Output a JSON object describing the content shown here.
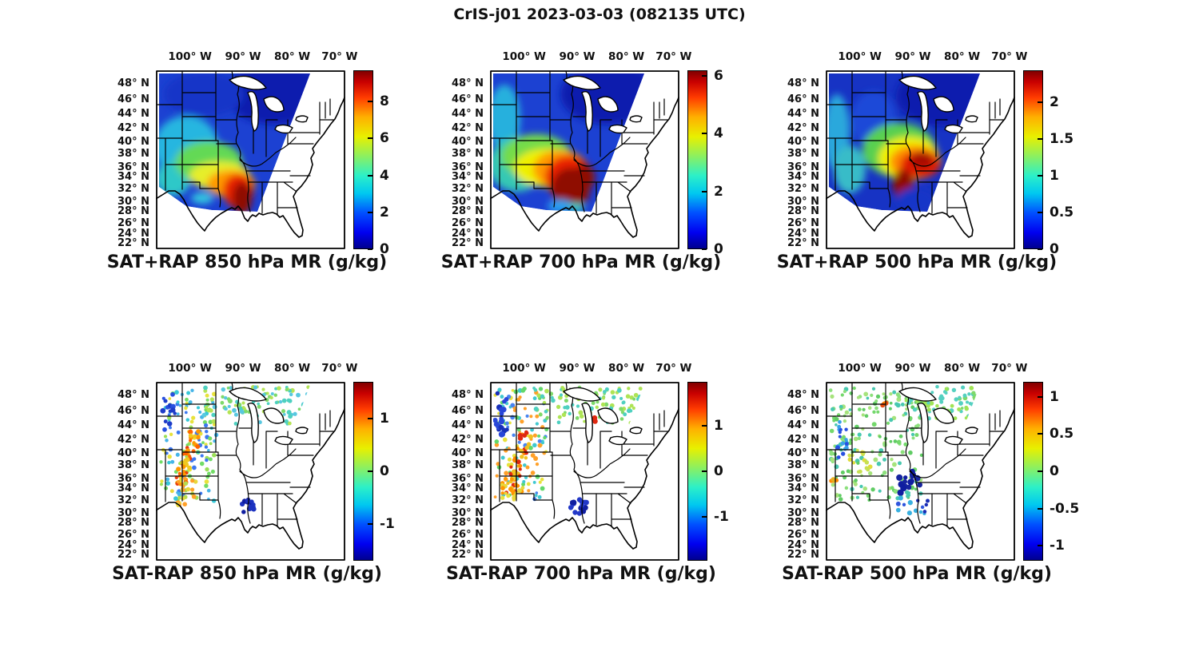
{
  "title": "CrIS-j01 2023-03-03 (082135 UTC)",
  "axis": {
    "lon_labels": [
      "100° W",
      "90° W",
      "80° W",
      "70° W"
    ],
    "lat_labels": [
      "48° N",
      "46° N",
      "44° N",
      "42° N",
      "40° N",
      "38° N",
      "36° N",
      "34° N",
      "32° N",
      "30° N",
      "28° N",
      "26° N",
      "24° N",
      "22° N"
    ]
  },
  "colormap": {
    "name": "jet",
    "low": "#00008f",
    "mid": "#e8f000",
    "high": "#800000"
  },
  "panels": [
    {
      "key": "sum850",
      "caption": "SAT+RAP 850 hPa MR (g/kg)",
      "colorbar": {
        "tick_labels": [
          "0",
          "2",
          "4",
          "6",
          "8"
        ],
        "tick_values": [
          0,
          2,
          4,
          6,
          8
        ],
        "min": 0,
        "max": 9.7
      }
    },
    {
      "key": "sum700",
      "caption": "SAT+RAP 700 hPa MR (g/kg)",
      "colorbar": {
        "tick_labels": [
          "0",
          "2",
          "4",
          "6"
        ],
        "tick_values": [
          0,
          2,
          4,
          6
        ],
        "min": 0,
        "max": 6.2
      }
    },
    {
      "key": "sum500",
      "caption": "SAT+RAP 500 hPa MR (g/kg)",
      "colorbar": {
        "tick_labels": [
          "0",
          "0.5",
          "1",
          "1.5",
          "2"
        ],
        "tick_values": [
          0,
          0.5,
          1,
          1.5,
          2
        ],
        "min": 0,
        "max": 2.43
      }
    },
    {
      "key": "diff850",
      "caption": "SAT-RAP 850 hPa MR (g/kg)",
      "colorbar": {
        "tick_labels": [
          "-1",
          "0",
          "1"
        ],
        "tick_values": [
          -1,
          0,
          1
        ],
        "min": -1.7,
        "max": 1.7
      }
    },
    {
      "key": "diff700",
      "caption": "SAT-RAP 700 hPa MR (g/kg)",
      "colorbar": {
        "tick_labels": [
          "-1",
          "0",
          "1"
        ],
        "tick_values": [
          -1,
          0,
          1
        ],
        "min": -1.95,
        "max": 1.95
      }
    },
    {
      "key": "diff500",
      "caption": "SAT-RAP 500 hPa MR (g/kg)",
      "colorbar": {
        "tick_labels": [
          "-1",
          "-0.5",
          "0",
          "0.5",
          "1"
        ],
        "tick_values": [
          -1,
          -0.5,
          0,
          0.5,
          1
        ],
        "min": -1.2,
        "max": 1.2
      }
    }
  ],
  "chart_data": [
    {
      "type": "heatmap",
      "title": "SAT+RAP 850 hPa MR (g/kg)",
      "units": "g/kg",
      "x_ticks": [
        "100° W",
        "90° W",
        "80° W",
        "70° W"
      ],
      "y_ticks": [
        "48° N",
        "46° N",
        "44° N",
        "42° N",
        "40° N",
        "38° N",
        "36° N",
        "34° N",
        "32° N",
        "30° N",
        "28° N",
        "26° N",
        "24° N",
        "22° N"
      ],
      "colorbar_ticks": [
        0,
        2,
        4,
        6,
        8
      ],
      "value_range": [
        0,
        9.7
      ],
      "pattern": "Satellite swath covers western 2/3 of domain; 1-3 g/kg (blue) over northern plains and Great Lakes, 4-6 g/kg (cyan-green-yellow) over central plains, 8-9+ g/kg (red/dark-red) plume over lower Mississippi valley (AR/LA/MS); white (no data) east of diagonal swath edge and over Gulf/Texas south."
    },
    {
      "type": "heatmap",
      "title": "SAT+RAP 700 hPa MR (g/kg)",
      "units": "g/kg",
      "colorbar_ticks": [
        0,
        2,
        4,
        6
      ],
      "value_range": [
        0,
        6.2
      ],
      "pattern": "Similar swath; broad 5-6+ g/kg (red/dark-red) maximum over MO/AR/MS/western TN, yellow-green fringe across KS/OK, blue 0.5-2 over northern plains and upper Great Lakes."
    },
    {
      "type": "heatmap",
      "title": "SAT+RAP 500 hPa MR (g/kg)",
      "units": "g/kg",
      "colorbar_ticks": [
        0,
        0.5,
        1,
        1.5,
        2
      ],
      "value_range": [
        0,
        2.43
      ],
      "pattern": "Mostly 0.3-1 (blue/cyan); red-orange arc ~2-2.4 over MO/IL/KY/TN with dark-red core near AR, low values south of it."
    },
    {
      "type": "scatter",
      "title": "SAT-RAP 850 hPa MR (g/kg)",
      "units": "g/kg",
      "colorbar_ticks": [
        -1,
        0,
        1
      ],
      "value_range": [
        -1.7,
        1.7
      ],
      "pattern": "Difference dots only where retrievals exist: green/cyan near 0 across north and Great Lakes, +1 to +1.5 (orange/red) streak along CO/NE/KS front range, scattered -1 (blue) dots west, dark-blue cluster ~-1.5 near AR/LA."
    },
    {
      "type": "scatter",
      "title": "SAT-RAP 700 hPa MR (g/kg)",
      "units": "g/kg",
      "colorbar_ticks": [
        -1,
        0,
        1
      ],
      "value_range": [
        -1.95,
        1.95
      ],
      "pattern": "Green/cyan near-zero field north; strong +1.5 (red/orange) diagonal streaks over CO/NM/KS; dark-blue negative clusters at western edge and near AR/LA; isolated red dot over MI."
    },
    {
      "type": "scatter",
      "title": "SAT-RAP 500 hPa MR (g/kg)",
      "units": "g/kg",
      "colorbar_ticks": [
        -1,
        -0.5,
        0,
        0.5,
        1
      ],
      "value_range": [
        -1.2,
        1.2
      ],
      "pattern": "Mostly near-zero green field over plains and upper midwest; dark-blue cluster ~-1 over MO/AR/OK; few orange +0.5 dots over ND and NM."
    }
  ]
}
